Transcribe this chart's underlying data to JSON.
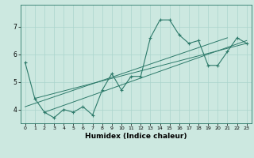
{
  "xlabel": "Humidex (Indice chaleur)",
  "ylabel": "",
  "bg_color": "#cce8e0",
  "line_color": "#2d7a6a",
  "grid_color": "#aad4cc",
  "xlim": [
    -0.5,
    23.5
  ],
  "ylim": [
    3.5,
    7.8
  ],
  "yticks": [
    4,
    5,
    6,
    7
  ],
  "xticks": [
    0,
    1,
    2,
    3,
    4,
    5,
    6,
    7,
    8,
    9,
    10,
    11,
    12,
    13,
    14,
    15,
    16,
    17,
    18,
    19,
    20,
    21,
    22,
    23
  ],
  "series1_x": [
    0,
    1,
    2,
    3,
    4,
    5,
    6,
    7,
    8,
    9,
    10,
    11,
    12,
    13,
    14,
    15,
    16,
    17,
    18,
    19,
    20,
    21,
    22,
    23
  ],
  "series1_y": [
    5.7,
    4.4,
    3.9,
    3.7,
    4.0,
    3.9,
    4.1,
    3.8,
    4.7,
    5.3,
    4.7,
    5.2,
    5.2,
    6.6,
    7.25,
    7.25,
    6.7,
    6.4,
    6.5,
    5.6,
    5.6,
    6.1,
    6.6,
    6.4
  ],
  "series2_x": [
    1,
    23
  ],
  "series2_y": [
    4.4,
    6.4
  ],
  "series3_x": [
    2,
    23
  ],
  "series3_y": [
    3.9,
    6.5
  ],
  "series4_x": [
    0,
    21
  ],
  "series4_y": [
    4.1,
    6.6
  ],
  "figsize": [
    3.2,
    2.0
  ],
  "dpi": 100
}
